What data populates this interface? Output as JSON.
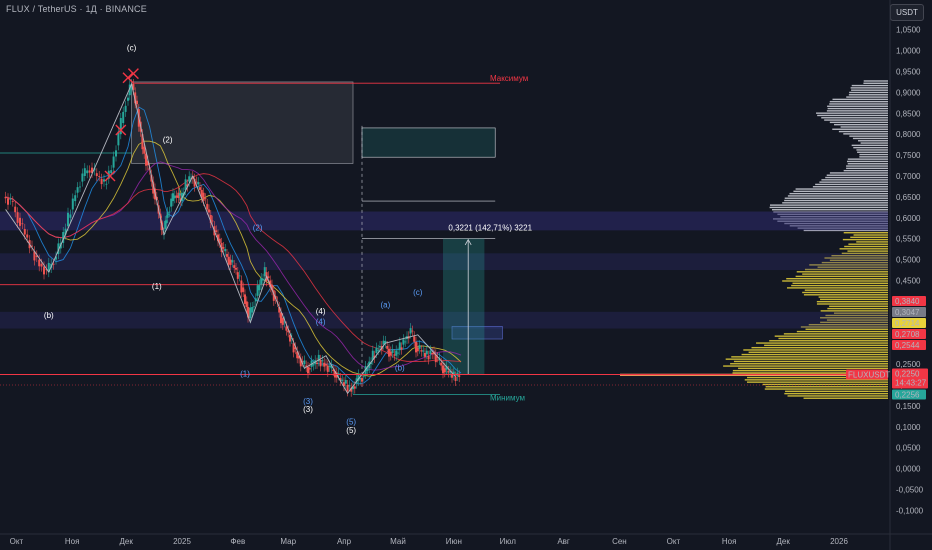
{
  "header": {
    "title": "FLUX / TetherUS · 1Д · BINANCE",
    "currency": "USDT"
  },
  "chart_data": {
    "type": "candlestick",
    "symbol": "FLUXUSDT",
    "ylim": [
      -0.12,
      1.08
    ],
    "y_ticks": [
      "1,0500",
      "1,0000",
      "0,9500",
      "0,9000",
      "0,8500",
      "0,8000",
      "0,7500",
      "0,7000",
      "0,6500",
      "0,6000",
      "0,5500",
      "0,5000",
      "0,4500",
      "0,4000",
      "0,3500",
      "0,3000",
      "0,2500",
      "0,2000",
      "0,1500",
      "0,1000",
      "0,0500",
      "0,0000",
      "-0,0500",
      "-0,1000"
    ],
    "y_tick_values": [
      1.05,
      1.0,
      0.95,
      0.9,
      0.85,
      0.8,
      0.75,
      0.7,
      0.65,
      0.6,
      0.55,
      0.5,
      0.45,
      0.4,
      0.35,
      0.3,
      0.25,
      0.2,
      0.15,
      0.1,
      0.05,
      0.0,
      -0.05,
      -0.1
    ],
    "x_ticks": [
      "Окт",
      "Ноя",
      "Дек",
      "2025",
      "Фев",
      "Мар",
      "Апр",
      "Май",
      "Июн",
      "Июл",
      "Авг",
      "Сен",
      "Окт",
      "Ноя",
      "Дек",
      "2026"
    ],
    "x_tick_days": [
      -92,
      -61,
      -31,
      0,
      31,
      59,
      90,
      120,
      151,
      181,
      212,
      243,
      273,
      304,
      334,
      365
    ],
    "price_series": [
      [
        -98,
        0.65
      ],
      [
        -94,
        0.64
      ],
      [
        -90,
        0.6
      ],
      [
        -86,
        0.56
      ],
      [
        -82,
        0.52
      ],
      [
        -78,
        0.49
      ],
      [
        -74,
        0.47
      ],
      [
        -70,
        0.5
      ],
      [
        -66,
        0.54
      ],
      [
        -62,
        0.6
      ],
      [
        -58,
        0.66
      ],
      [
        -54,
        0.7
      ],
      [
        -50,
        0.72
      ],
      [
        -46,
        0.7
      ],
      [
        -42,
        0.68
      ],
      [
        -38,
        0.72
      ],
      [
        -34,
        0.8
      ],
      [
        -30,
        0.88
      ],
      [
        -27,
        0.92
      ],
      [
        -24,
        0.86
      ],
      [
        -21,
        0.77
      ],
      [
        -18,
        0.72
      ],
      [
        -15,
        0.67
      ],
      [
        -12,
        0.61
      ],
      [
        -10,
        0.56
      ],
      [
        -8,
        0.6
      ],
      [
        -5,
        0.64
      ],
      [
        -2,
        0.66
      ],
      [
        0,
        0.64
      ],
      [
        3,
        0.68
      ],
      [
        6,
        0.7
      ],
      [
        9,
        0.68
      ],
      [
        12,
        0.66
      ],
      [
        15,
        0.62
      ],
      [
        18,
        0.58
      ],
      [
        21,
        0.55
      ],
      [
        24,
        0.52
      ],
      [
        27,
        0.5
      ],
      [
        30,
        0.48
      ],
      [
        33,
        0.45
      ],
      [
        36,
        0.4
      ],
      [
        38,
        0.36
      ],
      [
        41,
        0.4
      ],
      [
        44,
        0.44
      ],
      [
        47,
        0.47
      ],
      [
        50,
        0.44
      ],
      [
        53,
        0.4
      ],
      [
        56,
        0.36
      ],
      [
        59,
        0.33
      ],
      [
        62,
        0.3
      ],
      [
        65,
        0.27
      ],
      [
        68,
        0.25
      ],
      [
        71,
        0.24
      ],
      [
        74,
        0.25
      ],
      [
        77,
        0.26
      ],
      [
        80,
        0.25
      ],
      [
        83,
        0.24
      ],
      [
        86,
        0.23
      ],
      [
        89,
        0.21
      ],
      [
        92,
        0.2
      ],
      [
        95,
        0.19
      ],
      [
        98,
        0.21
      ],
      [
        101,
        0.22
      ],
      [
        104,
        0.24
      ],
      [
        107,
        0.27
      ],
      [
        110,
        0.29
      ],
      [
        113,
        0.3
      ],
      [
        116,
        0.28
      ],
      [
        119,
        0.27
      ],
      [
        122,
        0.29
      ],
      [
        125,
        0.31
      ],
      [
        128,
        0.33
      ],
      [
        131,
        0.29
      ],
      [
        134,
        0.28
      ],
      [
        137,
        0.27
      ],
      [
        140,
        0.28
      ],
      [
        143,
        0.26
      ],
      [
        146,
        0.24
      ],
      [
        149,
        0.23
      ],
      [
        152,
        0.22
      ],
      [
        155,
        0.225
      ]
    ],
    "price_levels": [
      {
        "label": "0,3840",
        "value": 0.384,
        "color": "#f23645"
      },
      {
        "label": "0,3047",
        "value": 0.3047,
        "color": "#787b86"
      },
      {
        "label": "0,2714",
        "value": 0.2714,
        "color": "#e8d23a"
      },
      {
        "label": "0,2708",
        "value": 0.2708,
        "color": "#f23645"
      },
      {
        "label": "0,2544",
        "value": 0.2544,
        "color": "#f23645"
      },
      {
        "label": "0,2250",
        "value": 0.225,
        "color": "#f23645"
      },
      {
        "label": "0,2256",
        "value": 0.2256,
        "color": "#26a69a"
      }
    ],
    "last_price": {
      "symbol": "FLUXUSDT",
      "value": "0,2250",
      "countdown": "14:43:27"
    },
    "measure_label": "0,3221 (142,71%) 3221",
    "zone_labels": {
      "top": "Максимум",
      "bottom": "Минимум"
    },
    "wave_labels": [
      {
        "text": "(c)",
        "day": -28,
        "y": 1.0,
        "color": "#ffffff"
      },
      {
        "text": "(2)",
        "day": -8,
        "y": 0.78,
        "color": "#ffffff"
      },
      {
        "text": "(b)",
        "day": -74,
        "y": 0.36,
        "color": "#ffffff"
      },
      {
        "text": "(1)",
        "day": -14,
        "y": 0.43,
        "color": "#ffffff"
      },
      {
        "text": "(2)",
        "day": 42,
        "y": 0.57,
        "color": "#5b9cf6"
      },
      {
        "text": "(1)",
        "day": 35,
        "y": 0.22,
        "color": "#5b9cf6"
      },
      {
        "text": "(4)",
        "day": 77,
        "y": 0.37,
        "color": "#ffffff"
      },
      {
        "text": "(4)",
        "day": 77,
        "y": 0.345,
        "color": "#5b9cf6"
      },
      {
        "text": "(a)",
        "day": 113,
        "y": 0.385,
        "color": "#5b9cf6"
      },
      {
        "text": "(c)",
        "day": 131,
        "y": 0.415,
        "color": "#5b9cf6"
      },
      {
        "text": "(b)",
        "day": 121,
        "y": 0.235,
        "color": "#5b9cf6"
      },
      {
        "text": "(3)",
        "day": 70,
        "y": 0.155,
        "color": "#5b9cf6"
      },
      {
        "text": "(3)",
        "day": 70,
        "y": 0.135,
        "color": "#ffffff"
      },
      {
        "text": "(5)",
        "day": 94,
        "y": 0.105,
        "color": "#5b9cf6"
      },
      {
        "text": "(5)",
        "day": 94,
        "y": 0.085,
        "color": "#ffffff"
      }
    ]
  }
}
